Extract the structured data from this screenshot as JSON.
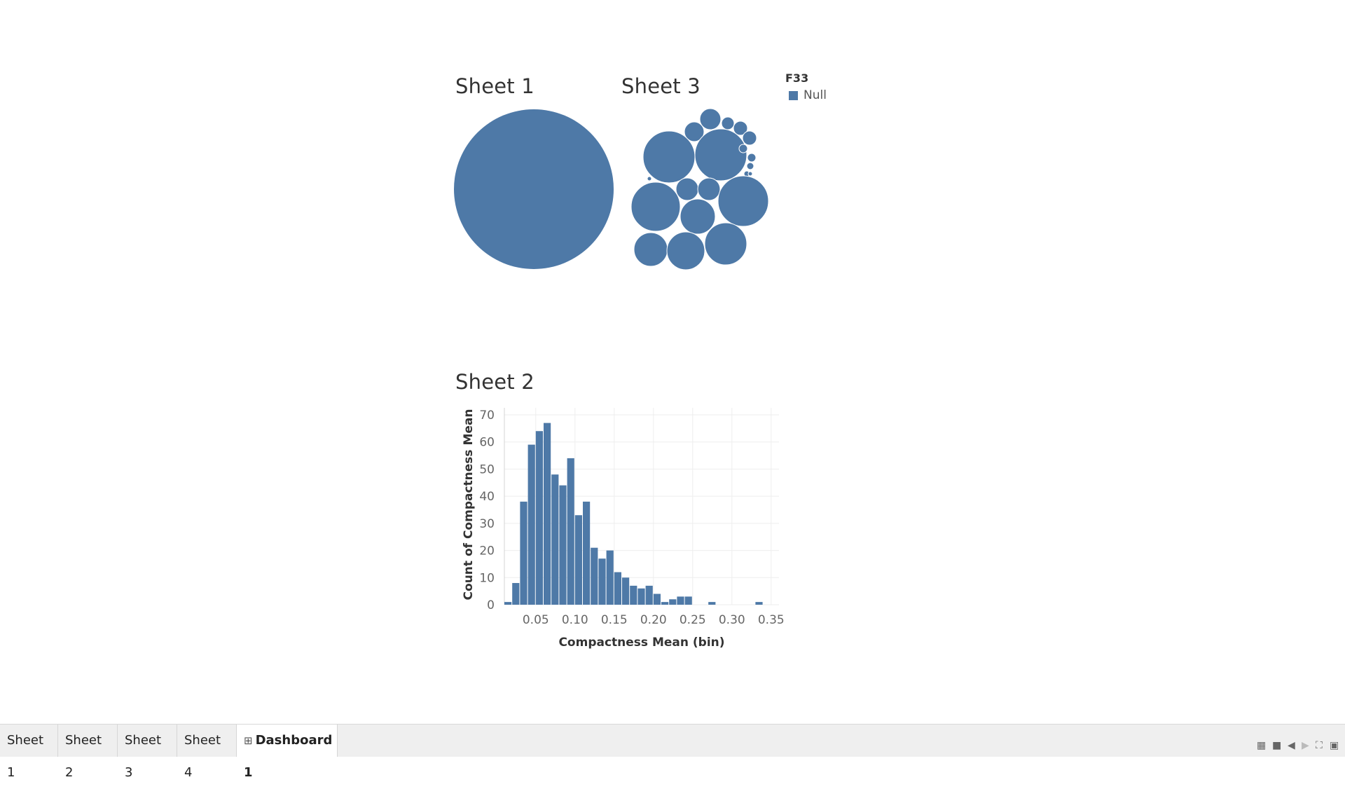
{
  "sheets": {
    "sheet1_title": "Sheet 1",
    "sheet3_title": "Sheet 3",
    "sheet2_title": "Sheet 2"
  },
  "legend": {
    "title": "F33",
    "items": [
      {
        "label": "Null",
        "color": "#4e79a7"
      }
    ]
  },
  "colors": {
    "mark": "#4e79a7",
    "grid": "#eeeeee",
    "axis_text": "#666666"
  },
  "chart_data": [
    {
      "type": "packed-bubble",
      "title": "Sheet 1",
      "bubbles": 1
    },
    {
      "type": "packed-bubble",
      "title": "Sheet 3",
      "bubbles": 26
    },
    {
      "type": "bar",
      "title": "Sheet 2",
      "xlabel": "Compactness Mean (bin)",
      "ylabel": "Count of Compactness Mean",
      "ylim": [
        0,
        70
      ],
      "yticks": [
        0,
        10,
        20,
        30,
        40,
        50,
        60,
        70
      ],
      "xticks": [
        "0.05",
        "0.10",
        "0.15",
        "0.20",
        "0.25",
        "0.30",
        "0.35"
      ],
      "xlim": [
        0.01,
        0.36
      ],
      "bin_width": 0.01,
      "grid": true,
      "bins": [
        0.01,
        0.02,
        0.03,
        0.04,
        0.05,
        0.06,
        0.07,
        0.08,
        0.09,
        0.1,
        0.11,
        0.12,
        0.13,
        0.14,
        0.15,
        0.16,
        0.17,
        0.18,
        0.19,
        0.2,
        0.21,
        0.22,
        0.23,
        0.24,
        0.25,
        0.26,
        0.27,
        0.28,
        0.29,
        0.3,
        0.31,
        0.32,
        0.33,
        0.34
      ],
      "values": [
        1,
        8,
        38,
        59,
        64,
        67,
        48,
        44,
        54,
        33,
        38,
        21,
        17,
        20,
        12,
        10,
        7,
        6,
        7,
        4,
        1,
        2,
        3,
        3,
        0,
        0,
        1,
        0,
        0,
        0,
        0,
        0,
        1,
        0
      ]
    }
  ],
  "tabs": [
    {
      "label": "Sheet 1"
    },
    {
      "label": "Sheet 2"
    },
    {
      "label": "Sheet 3"
    },
    {
      "label": "Sheet 4"
    },
    {
      "label": "Dashboard 1",
      "icon": "dashboard-grid-icon",
      "active": true
    }
  ],
  "tab_controls": [
    "show-sheets-icon",
    "filmstrip-icon",
    "prev-sheet-icon",
    "next-sheet-icon",
    "fit-screen-icon",
    "presentation-icon"
  ]
}
